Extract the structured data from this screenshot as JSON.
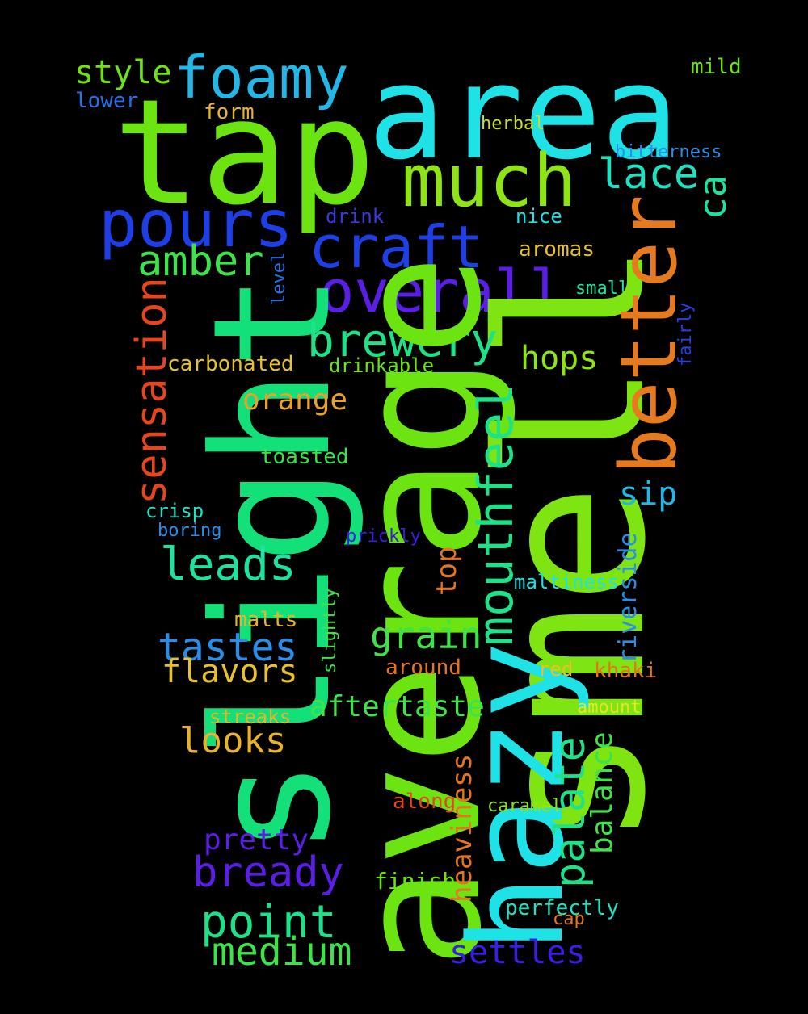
{
  "words": [
    {
      "text": "area",
      "color": "#1ee2e6"
    },
    {
      "text": "tap",
      "color": "#6ce412"
    },
    {
      "text": "foamy",
      "color": "#22b7e6"
    },
    {
      "text": "style",
      "color": "#6ce412"
    },
    {
      "text": "mild",
      "color": "#6ce412"
    },
    {
      "text": "lower",
      "color": "#2a6fe8"
    },
    {
      "text": "form",
      "color": "#e8b22a"
    },
    {
      "text": "herbal",
      "color": "#c9dd2a"
    },
    {
      "text": "bitterness",
      "color": "#2a8ee8"
    },
    {
      "text": "much",
      "color": "#8ee414"
    },
    {
      "text": "lace",
      "color": "#1ee2c2"
    },
    {
      "text": "pours",
      "color": "#1e3ee6"
    },
    {
      "text": "craft",
      "color": "#1e3ee6"
    },
    {
      "text": "drink",
      "color": "#3a3ae0"
    },
    {
      "text": "nice",
      "color": "#1ee2e6"
    },
    {
      "text": "ca",
      "color": "#1ee2a0"
    },
    {
      "text": "amber",
      "color": "#3ee24a"
    },
    {
      "text": "aromas",
      "color": "#e8c22a"
    },
    {
      "text": "overall",
      "color": "#5a1ee6"
    },
    {
      "text": "small",
      "color": "#1ee2a0"
    },
    {
      "text": "level",
      "color": "#2a6fe8"
    },
    {
      "text": "fairly",
      "color": "#2a3ee8"
    },
    {
      "text": "smell",
      "color": "#7ee412"
    },
    {
      "text": "better",
      "color": "#e67a1e"
    },
    {
      "text": "slight",
      "color": "#14e07a"
    },
    {
      "text": "sensation",
      "color": "#e6461e"
    },
    {
      "text": "brewery",
      "color": "#1ee28a"
    },
    {
      "text": "hops",
      "color": "#8ee414"
    },
    {
      "text": "carbonated",
      "color": "#e8c22a"
    },
    {
      "text": "drinkable",
      "color": "#6ce412"
    },
    {
      "text": "orange",
      "color": "#e8a22a"
    },
    {
      "text": "average",
      "color": "#6ce412"
    },
    {
      "text": "mouthfeel",
      "color": "#1ee28a"
    },
    {
      "text": "toasted",
      "color": "#3ee24a"
    },
    {
      "text": "sip",
      "color": "#22b7e6"
    },
    {
      "text": "crisp",
      "color": "#1ee2c2"
    },
    {
      "text": "boring",
      "color": "#2a8ee8"
    },
    {
      "text": "prickly",
      "color": "#3a1ee6"
    },
    {
      "text": "leads",
      "color": "#1ee2a0"
    },
    {
      "text": "top",
      "color": "#e6761e"
    },
    {
      "text": "riverside",
      "color": "#2a8ee8"
    },
    {
      "text": "maltiness",
      "color": "#1ee2e6"
    },
    {
      "text": "slightly",
      "color": "#3ee24a"
    },
    {
      "text": "malts",
      "color": "#e8b22a"
    },
    {
      "text": "grain",
      "color": "#3ee24a"
    },
    {
      "text": "tastes",
      "color": "#2a8ee8"
    },
    {
      "text": "hazy",
      "color": "#1ee2e6"
    },
    {
      "text": "flavors",
      "color": "#e8c22a"
    },
    {
      "text": "around",
      "color": "#e6761e"
    },
    {
      "text": "red",
      "color": "#e8c22a"
    },
    {
      "text": "khaki",
      "color": "#e6761e"
    },
    {
      "text": "aftertaste",
      "color": "#3ee24a"
    },
    {
      "text": "amount",
      "color": "#e8e22a"
    },
    {
      "text": "streaks",
      "color": "#e8b22a"
    },
    {
      "text": "looks",
      "color": "#e8b22a"
    },
    {
      "text": "palate",
      "color": "#1ee28a"
    },
    {
      "text": "balance",
      "color": "#3ee24a"
    },
    {
      "text": "heaviness",
      "color": "#e6761e"
    },
    {
      "text": "along",
      "color": "#e6461e"
    },
    {
      "text": "caramel",
      "color": "#8ee414"
    },
    {
      "text": "pretty",
      "color": "#5a1ee6"
    },
    {
      "text": "bready",
      "color": "#5a1ee6"
    },
    {
      "text": "finish",
      "color": "#6ce412"
    },
    {
      "text": "point",
      "color": "#1ee28a"
    },
    {
      "text": "perfectly",
      "color": "#1ee2c2"
    },
    {
      "text": "cap",
      "color": "#e6761e"
    },
    {
      "text": "medium",
      "color": "#3ee24a"
    },
    {
      "text": "settles",
      "color": "#3a1ee6"
    }
  ]
}
